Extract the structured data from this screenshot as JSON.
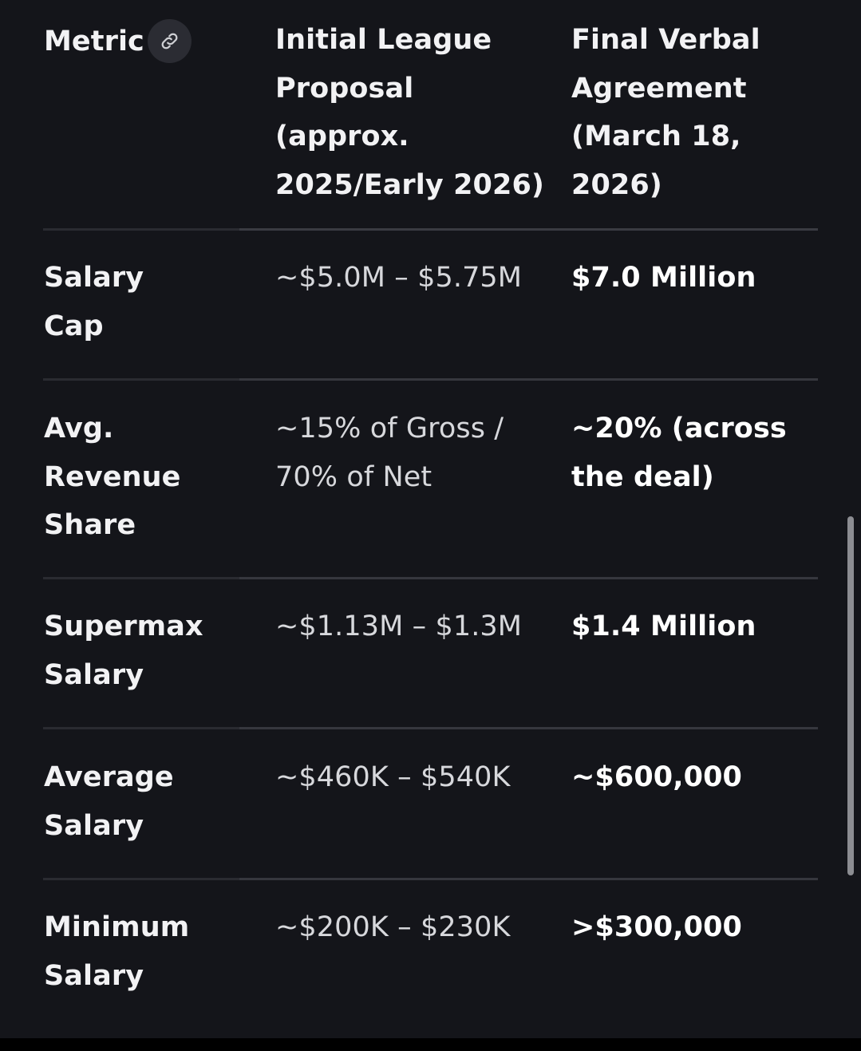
{
  "table": {
    "headers": {
      "metric": "Metric",
      "initial": [
        "Initial League",
        "Proposal",
        "(approx.",
        "2025/Early 2026)"
      ],
      "final": [
        "Final Verbal",
        "Agreement",
        "(March 18,",
        "2026)"
      ]
    },
    "link_icon": "link-icon",
    "rows": [
      {
        "metric": [
          "Salary",
          "Cap"
        ],
        "initial": [
          "~$5.0M – $5.75M"
        ],
        "final": [
          "$7.0 Million"
        ]
      },
      {
        "metric": [
          "Avg.",
          "Revenue",
          "Share"
        ],
        "initial": [
          "~15% of Gross /",
          "70% of Net"
        ],
        "final": [
          "~20% (across",
          "the deal)"
        ]
      },
      {
        "metric": [
          "Supermax",
          "Salary"
        ],
        "initial": [
          "~$1.13M – $1.3M"
        ],
        "final": [
          "$1.4 Million"
        ]
      },
      {
        "metric": [
          "Average",
          "Salary"
        ],
        "initial": [
          "~$460K – $540K"
        ],
        "final": [
          "~$600,000"
        ]
      },
      {
        "metric": [
          "Minimum",
          "Salary"
        ],
        "initial": [
          "~$200K – $230K"
        ],
        "final": [
          ">$300,000"
        ]
      }
    ]
  },
  "colors": {
    "background": "#14151a",
    "text": "#ffffff",
    "muted_text": "#d7d8dc",
    "divider": "#36373e"
  }
}
